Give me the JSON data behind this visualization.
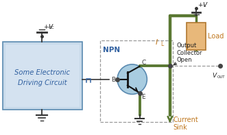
{
  "bg_color": "#ffffff",
  "box_fill": "#c8daea",
  "box_fill2": "#deeaf5",
  "box_stroke": "#5a8ab0",
  "load_fill": "#e8b87a",
  "load_stroke": "#b07830",
  "npn_circle_fill": "#a8cce0",
  "npn_circle_stroke": "#5a8ab0",
  "wire_dark": "#4a6428",
  "wire_color": "#5a7832",
  "dashed_color": "#999999",
  "text_blue": "#3060a0",
  "text_orange": "#c07820",
  "text_dark": "#222222",
  "dot_color": "#444444",
  "gnd_color": "#333333",
  "label_circuit1": "Some Electronic",
  "label_circuit2": "Driving Circuit",
  "label_npn": "NPN",
  "label_b": "B",
  "label_c": "C",
  "label_e": "E",
  "label_load": "Load",
  "label_open": "Open",
  "label_collector": "Collector",
  "label_output": "Output",
  "label_current": "Current",
  "label_sink": "Sink"
}
